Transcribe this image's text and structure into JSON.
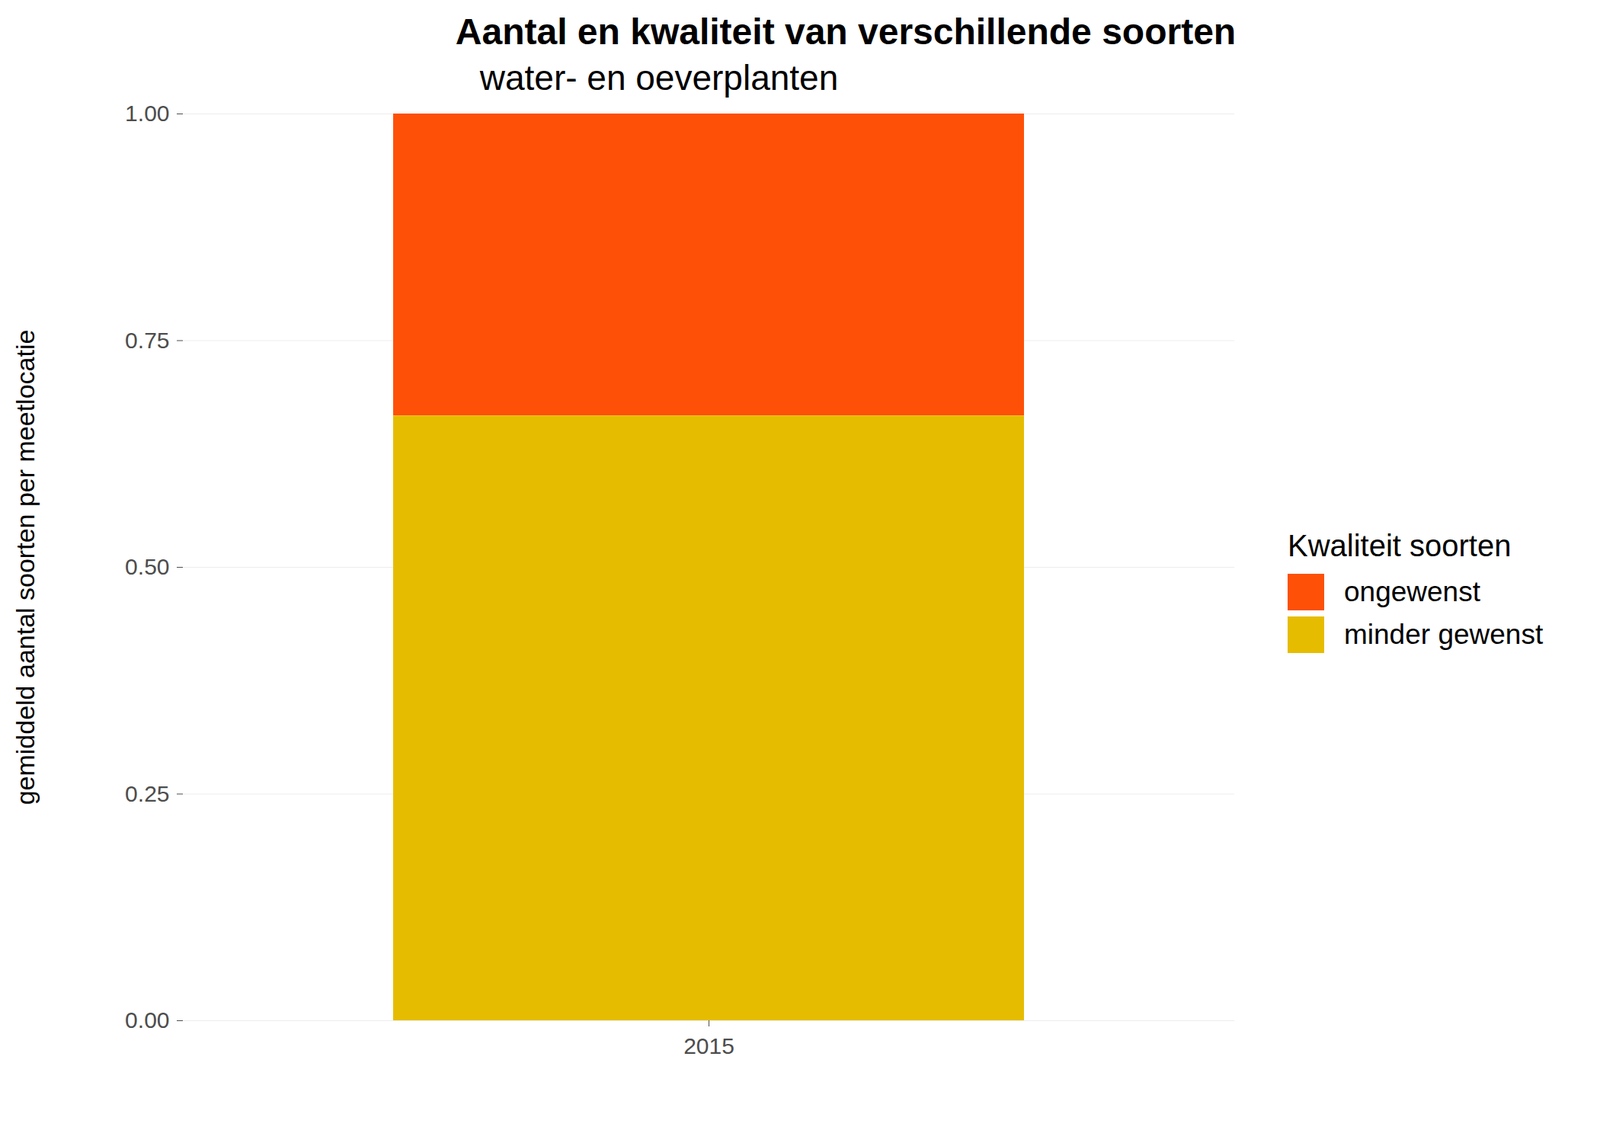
{
  "chart_data": {
    "type": "bar",
    "title": "Aantal en kwaliteit van verschillende soorten",
    "subtitle": "water- en oeverplanten",
    "ylabel": "gemiddeld aantal soorten per meetlocatie",
    "legend_title": "Kwaliteit soorten",
    "categories": [
      "2015"
    ],
    "series": [
      {
        "name": "ongewenst",
        "color": "#FF5008",
        "values": [
          0.333
        ]
      },
      {
        "name": "minder gewenst",
        "color": "#E6BC00",
        "values": [
          0.667
        ]
      }
    ],
    "stacked": true,
    "ylim": [
      0,
      1
    ],
    "yticks": [
      {
        "value": 0,
        "label": "0.00"
      },
      {
        "value": 0.25,
        "label": "0.25"
      },
      {
        "value": 0.5,
        "label": "0.50"
      },
      {
        "value": 0.75,
        "label": "0.75"
      },
      {
        "value": 1,
        "label": "1.00"
      }
    ],
    "grid": true,
    "legend": "right"
  }
}
